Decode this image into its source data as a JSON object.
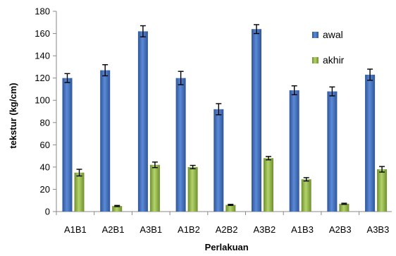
{
  "chart_data": {
    "type": "bar",
    "categories": [
      "A1B1",
      "A2B1",
      "A3B1",
      "A1B2",
      "A2B2",
      "A3B2",
      "A1B3",
      "A2B3",
      "A3B3"
    ],
    "series": [
      {
        "name": "awal",
        "color": "#4472C4",
        "values": [
          120,
          127,
          162,
          120,
          92,
          164,
          109,
          108,
          123
        ],
        "errors": [
          4,
          5,
          5,
          6,
          5,
          4,
          4,
          4,
          5
        ]
      },
      {
        "name": "akhir",
        "color": "#9BBB59",
        "values": [
          35,
          5,
          42,
          40,
          6,
          48,
          29,
          7,
          38
        ],
        "errors": [
          3,
          0.5,
          2.5,
          1.5,
          0.5,
          1.5,
          1.5,
          0.5,
          2.5
        ]
      }
    ],
    "xlabel": "Perlakuan",
    "ylabel": "tekstur (kg/cm)",
    "ylim": [
      0,
      180
    ],
    "yticks": [
      0,
      20,
      40,
      60,
      80,
      100,
      120,
      140,
      160,
      180
    ],
    "legend_position": "top-right",
    "error_bars": true,
    "grid": false
  }
}
